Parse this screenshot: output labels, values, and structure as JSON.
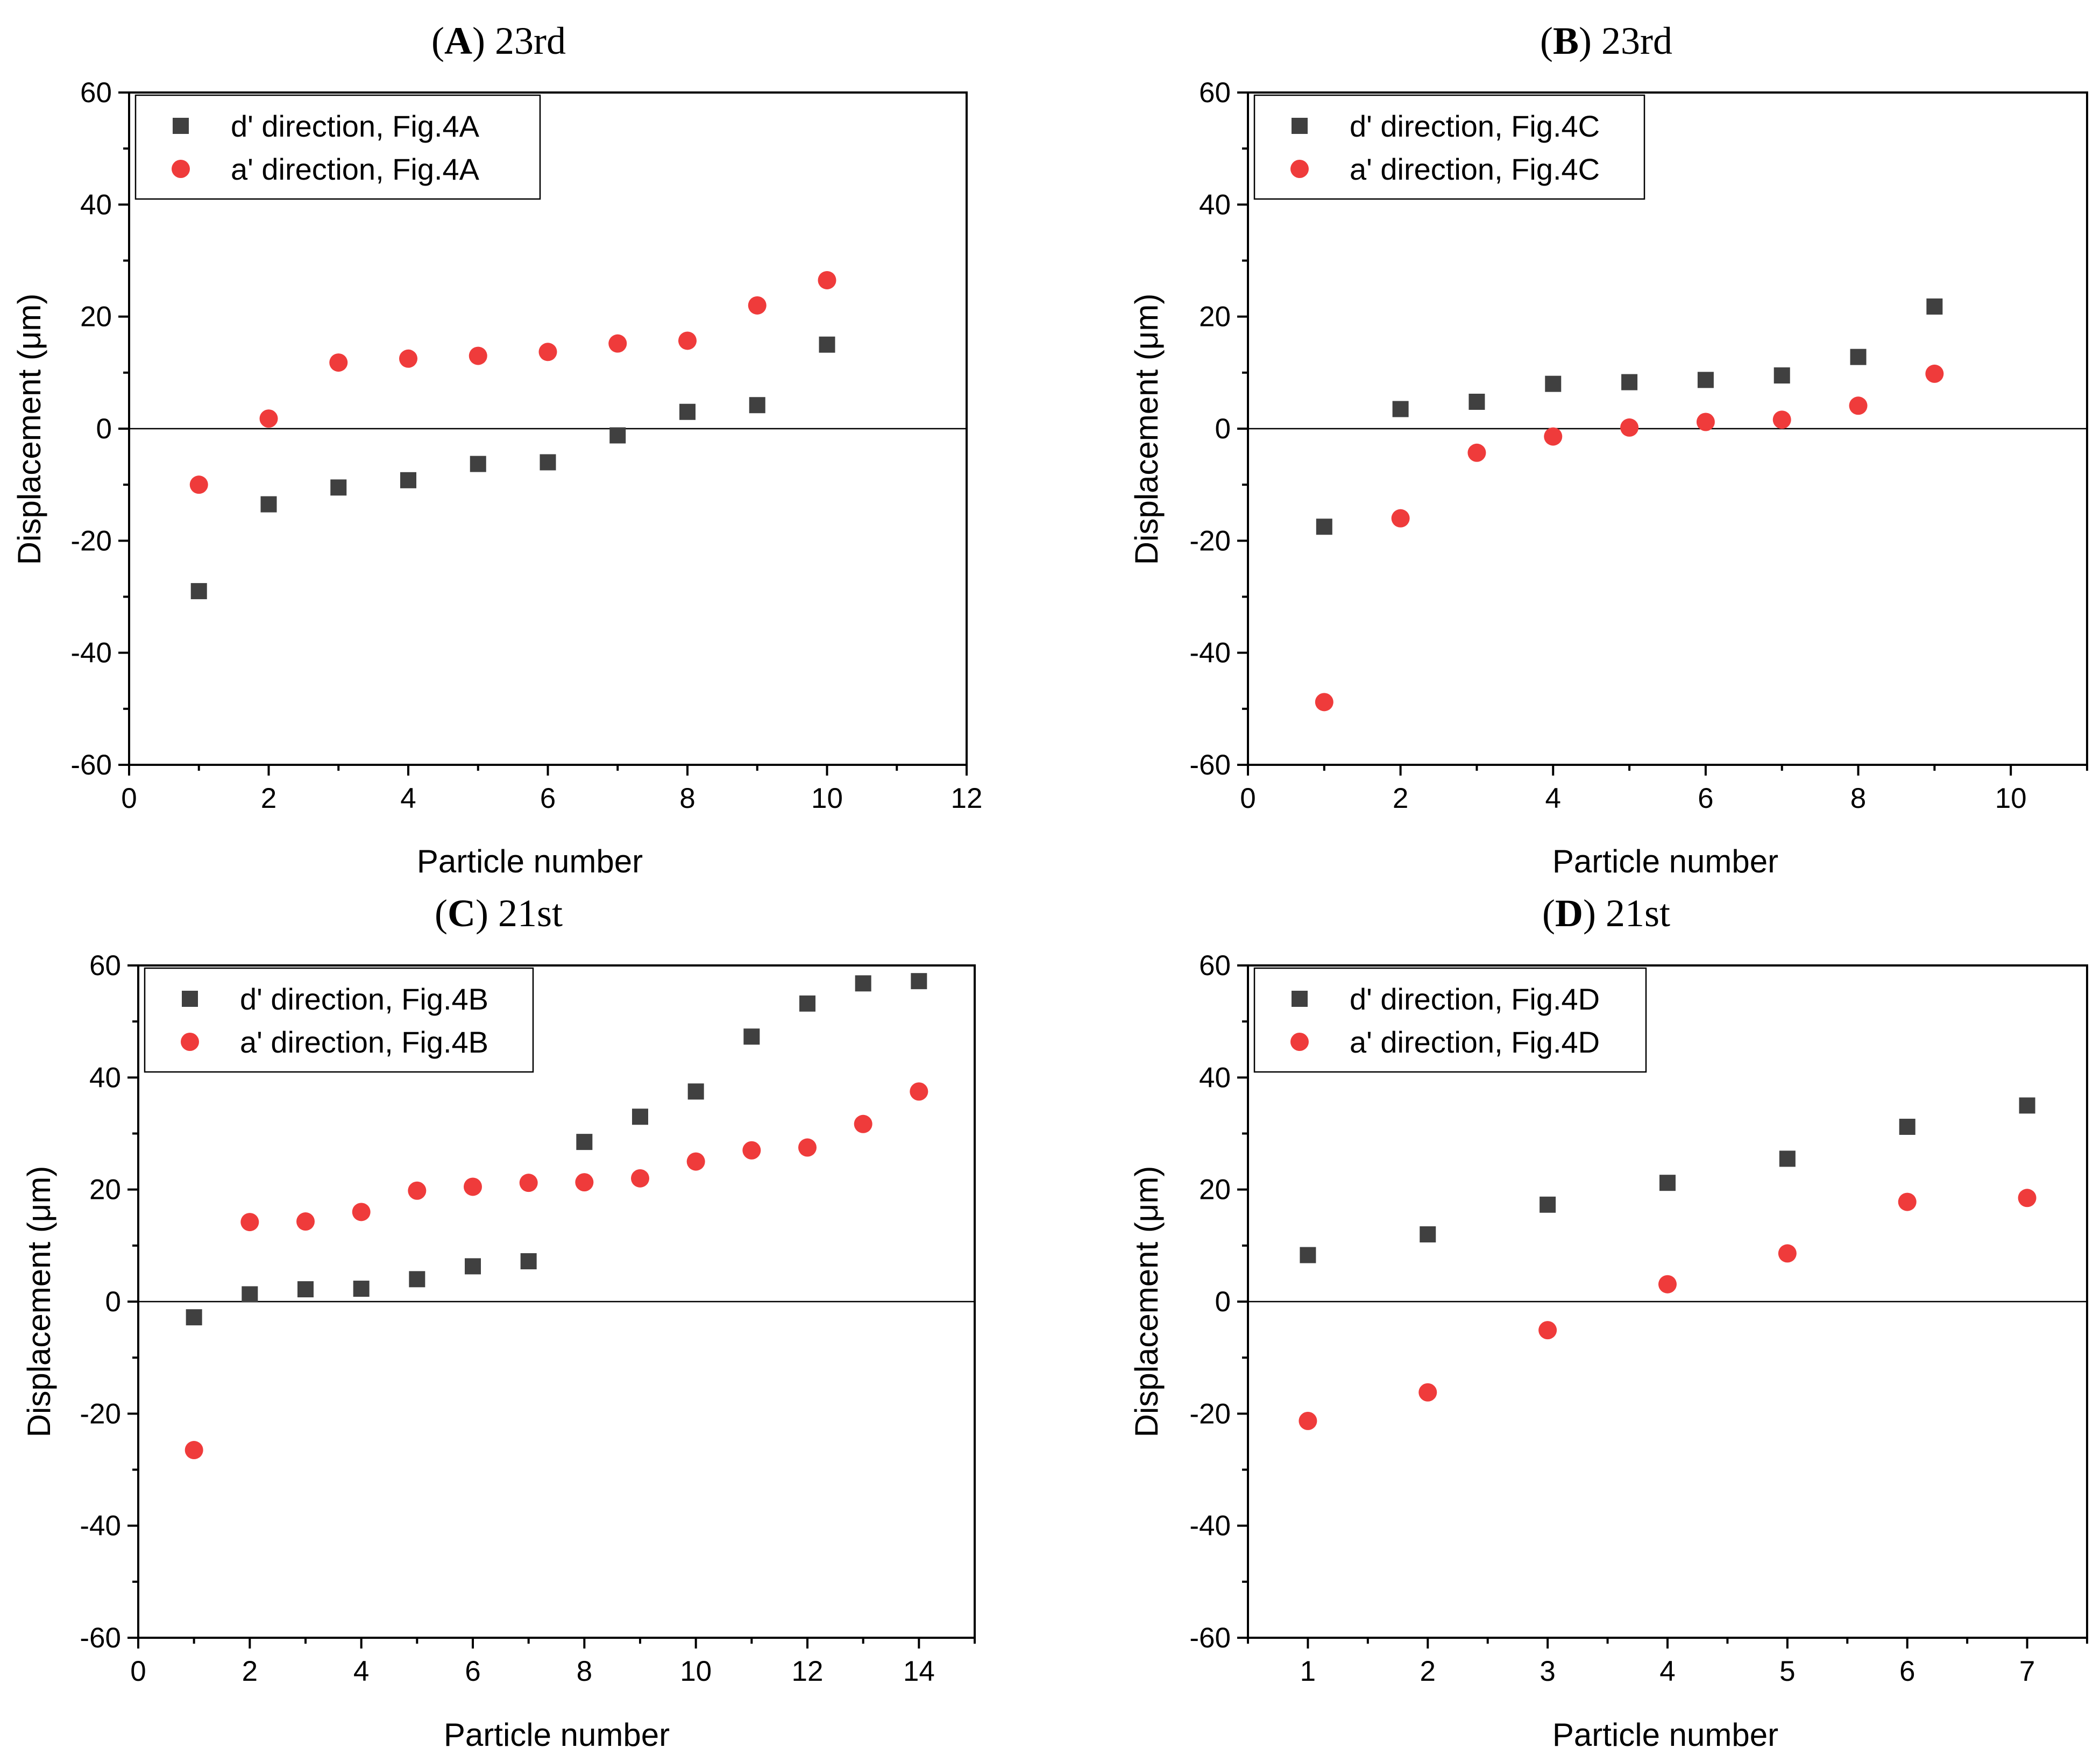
{
  "chart_data": [
    {
      "type": "scatter",
      "panel_letter": "A",
      "panel_suffix": "23rd",
      "xlabel": "Particle number",
      "ylabel": "Displacement (μm)",
      "xlim": [
        0,
        12
      ],
      "ylim": [
        -60,
        60
      ],
      "xticks": [
        0,
        2,
        4,
        6,
        8,
        10,
        12
      ],
      "yticks": [
        -60,
        -40,
        -20,
        0,
        20,
        40,
        60
      ],
      "legend_position": "top-left",
      "series": [
        {
          "name": "d' direction, Fig.4A",
          "marker": "square",
          "color": "#404040",
          "x": [
            1,
            2,
            3,
            4,
            5,
            6,
            7,
            8,
            9,
            10
          ],
          "y": [
            -29,
            -13.5,
            -10.5,
            -9.2,
            -6.3,
            -6,
            -1.2,
            3,
            4.2,
            15
          ]
        },
        {
          "name": "a' direction, Fig.4A",
          "marker": "circle",
          "color": "#ef3b3b",
          "x": [
            1,
            2,
            3,
            4,
            5,
            6,
            7,
            8,
            9,
            10
          ],
          "y": [
            -10,
            1.8,
            11.8,
            12.5,
            13,
            13.7,
            15.2,
            15.7,
            22,
            26.5
          ]
        }
      ]
    },
    {
      "type": "scatter",
      "panel_letter": "B",
      "panel_suffix": "23rd",
      "xlabel": "Particle number",
      "ylabel": "Displacement (μm)",
      "xlim": [
        0,
        11
      ],
      "ylim": [
        -60,
        60
      ],
      "xticks": [
        0,
        2,
        4,
        6,
        8,
        10
      ],
      "yticks": [
        -60,
        -40,
        -20,
        0,
        20,
        40,
        60
      ],
      "legend_position": "top-left",
      "series": [
        {
          "name": "d' direction, Fig.4C",
          "marker": "square",
          "color": "#404040",
          "x": [
            1,
            2,
            3,
            4,
            5,
            6,
            7,
            8,
            9
          ],
          "y": [
            -17.5,
            3.5,
            4.8,
            8,
            8.3,
            8.7,
            9.5,
            12.8,
            21.8
          ]
        },
        {
          "name": "a' direction, Fig.4C",
          "marker": "circle",
          "color": "#ef3b3b",
          "x": [
            1,
            2,
            3,
            4,
            5,
            6,
            7,
            8,
            9
          ],
          "y": [
            -48.8,
            -16,
            -4.3,
            -1.4,
            0.2,
            1.2,
            1.6,
            4.1,
            9.8
          ]
        }
      ]
    },
    {
      "type": "scatter",
      "panel_letter": "C",
      "panel_suffix": "21st",
      "xlabel": "Particle number",
      "ylabel": "Displacement (μm)",
      "xlim": [
        0,
        15
      ],
      "ylim": [
        -60,
        60
      ],
      "xticks": [
        0,
        2,
        4,
        6,
        8,
        10,
        12,
        14
      ],
      "yticks": [
        -60,
        -40,
        -20,
        0,
        20,
        40,
        60
      ],
      "legend_position": "top-left",
      "series": [
        {
          "name": "d' direction, Fig.4B",
          "marker": "square",
          "color": "#404040",
          "x": [
            1,
            2,
            3,
            4,
            5,
            6,
            7,
            8,
            9,
            10,
            11,
            12,
            13,
            14
          ],
          "y": [
            -2.8,
            1.3,
            2.2,
            2.3,
            4,
            6.3,
            7.2,
            28.5,
            33,
            37.5,
            47.3,
            53.2,
            56.8,
            57.2
          ]
        },
        {
          "name": "a' direction, Fig.4B",
          "marker": "circle",
          "color": "#ef3b3b",
          "x": [
            1,
            2,
            3,
            4,
            5,
            6,
            7,
            8,
            9,
            10,
            11,
            12,
            13,
            14
          ],
          "y": [
            -26.5,
            14.2,
            14.3,
            16,
            19.8,
            20.5,
            21.2,
            21.3,
            22,
            25,
            27,
            27.5,
            31.7,
            37.5
          ]
        }
      ]
    },
    {
      "type": "scatter",
      "panel_letter": "D",
      "panel_suffix": "21st",
      "xlabel": "Particle number",
      "ylabel": "Displacement (μm)",
      "xlim": [
        0.5,
        7.5
      ],
      "ylim": [
        -60,
        60
      ],
      "xticks": [
        1,
        2,
        3,
        4,
        5,
        6,
        7
      ],
      "yticks": [
        -60,
        -40,
        -20,
        0,
        20,
        40,
        60
      ],
      "legend_position": "top-left",
      "series": [
        {
          "name": "d' direction, Fig.4D",
          "marker": "square",
          "color": "#404040",
          "x": [
            1,
            2,
            3,
            4,
            5,
            6,
            7
          ],
          "y": [
            8.3,
            12,
            17.3,
            21.2,
            25.5,
            31.2,
            35
          ]
        },
        {
          "name": "a' direction, Fig.4D",
          "marker": "circle",
          "color": "#ef3b3b",
          "x": [
            1,
            2,
            3,
            4,
            5,
            6,
            7
          ],
          "y": [
            -21.3,
            -16.2,
            -5.1,
            3.1,
            8.6,
            17.8,
            18.5
          ]
        }
      ]
    }
  ]
}
